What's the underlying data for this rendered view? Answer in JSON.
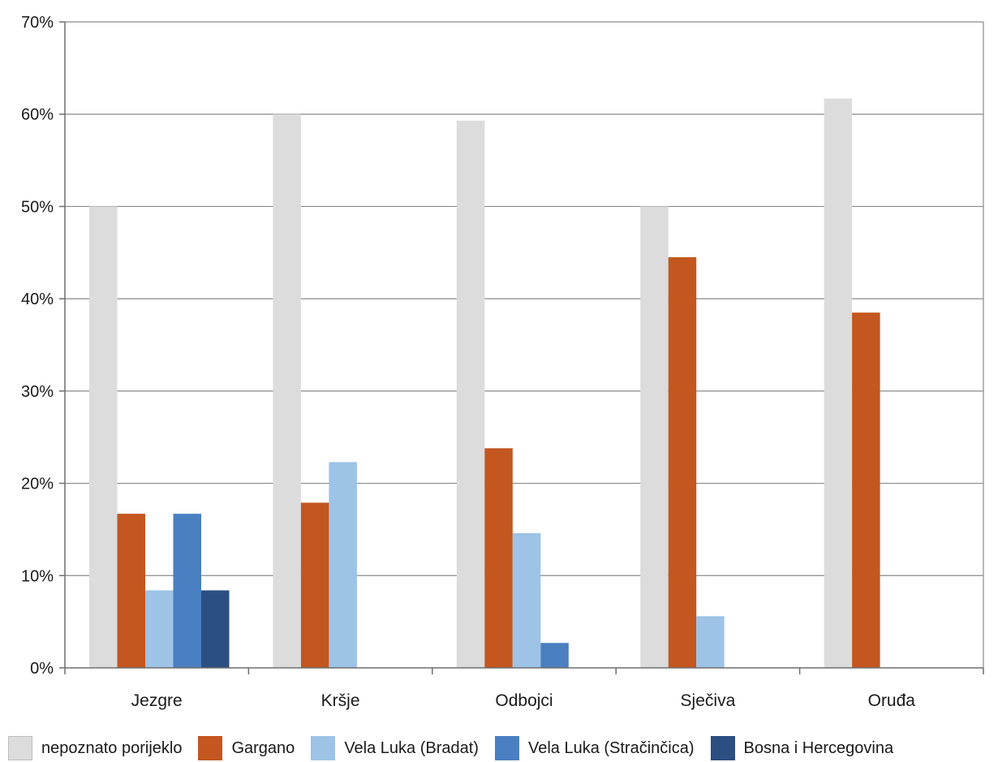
{
  "chart_data": {
    "type": "bar",
    "title": "",
    "xlabel": "",
    "ylabel": "",
    "ylim": [
      0,
      70
    ],
    "y_ticks": [
      {
        "value": 0,
        "label": "0%"
      },
      {
        "value": 10,
        "label": "10%"
      },
      {
        "value": 20,
        "label": "20%"
      },
      {
        "value": 30,
        "label": "30%"
      },
      {
        "value": 40,
        "label": "40%"
      },
      {
        "value": 50,
        "label": "50%"
      },
      {
        "value": 60,
        "label": "60%"
      },
      {
        "value": 70,
        "label": "70%"
      }
    ],
    "grid": true,
    "legend_position": "bottom",
    "categories": [
      "Jezgre",
      "Kršje",
      "Odbojci",
      "Sječiva",
      "Oruđa"
    ],
    "series": [
      {
        "name": "nepoznato porijeklo",
        "color": "#dcdcdc",
        "values": [
          50,
          60,
          59.3,
          50,
          61.7
        ]
      },
      {
        "name": "Gargano",
        "color": "#c4561f",
        "values": [
          16.7,
          17.9,
          23.8,
          44.5,
          38.5
        ]
      },
      {
        "name": "Vela Luka (Bradat)",
        "color": "#9dc3e6",
        "values": [
          8.4,
          22.3,
          14.6,
          5.6,
          0
        ]
      },
      {
        "name": "Vela Luka (Stračinčica)",
        "color": "#4a7fc1",
        "values": [
          16.7,
          0,
          2.7,
          0,
          0
        ]
      },
      {
        "name": "Bosna i Hercegovina",
        "color": "#2b4f80",
        "values": [
          8.4,
          0,
          0,
          0,
          0
        ]
      }
    ]
  }
}
